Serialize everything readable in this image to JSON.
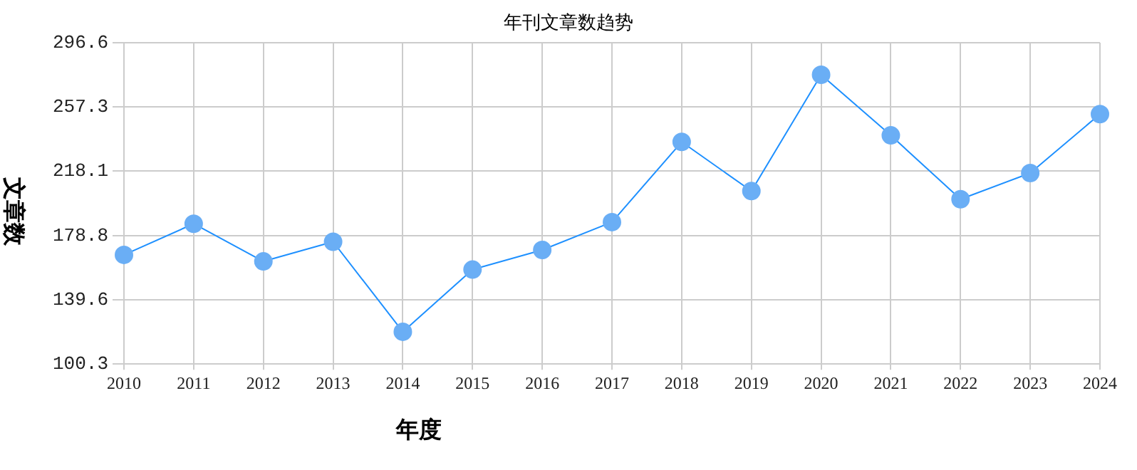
{
  "chart_data": {
    "type": "line",
    "title": "年刊文章数趋势",
    "xlabel": "年度",
    "ylabel": "文章数",
    "categories": [
      "2010",
      "2011",
      "2012",
      "2013",
      "2014",
      "2015",
      "2016",
      "2017",
      "2018",
      "2019",
      "2020",
      "2021",
      "2022",
      "2023",
      "2024"
    ],
    "series": [
      {
        "color": "#1e90ff",
        "values": [
          167,
          186,
          163,
          175,
          120,
          158,
          170,
          187,
          236,
          206,
          277,
          240,
          201,
          217,
          253
        ]
      }
    ],
    "ylim": [
      100.3,
      296.6
    ],
    "yticks": [
      100.3,
      139.6,
      178.8,
      218.1,
      257.3,
      296.6
    ],
    "grid": true,
    "legend": false,
    "marker": "circle",
    "line_style": "solid"
  }
}
